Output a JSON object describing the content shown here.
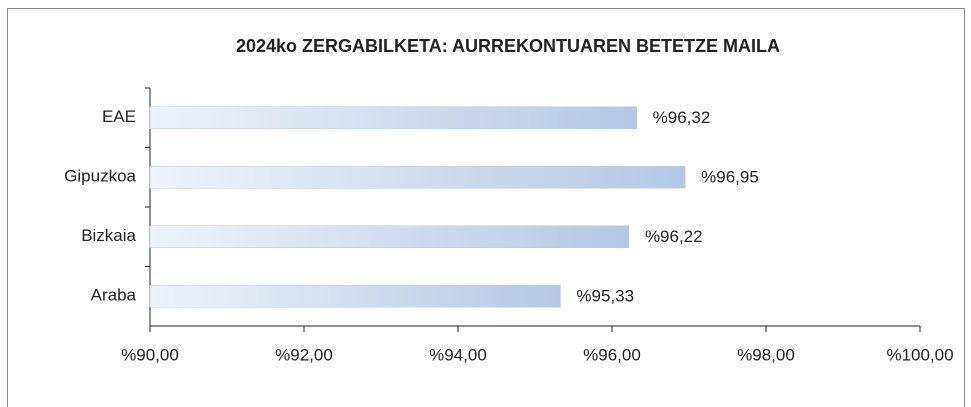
{
  "chart_data": {
    "type": "barh",
    "title": "2024ko ZERGABILKETA:  AURREKONTUAREN BETETZE MAILA",
    "categories": [
      "EAE",
      "Gipuzkoa",
      "Bizkaia",
      "Araba"
    ],
    "values": [
      96.32,
      96.95,
      96.22,
      95.33
    ],
    "value_labels": [
      "%96,32",
      "%96,95",
      "%96,22",
      "%95,33"
    ],
    "color": "#b8cce4",
    "xlim": [
      90,
      100
    ],
    "xticks": [
      {
        "value": 90,
        "label": "%90,00"
      },
      {
        "value": 92,
        "label": "%92,00"
      },
      {
        "value": 94,
        "label": "%94,00"
      },
      {
        "value": 96,
        "label": "%96,00"
      },
      {
        "value": 98,
        "label": "%98,00"
      },
      {
        "value": 100,
        "label": "%100,00"
      }
    ]
  }
}
